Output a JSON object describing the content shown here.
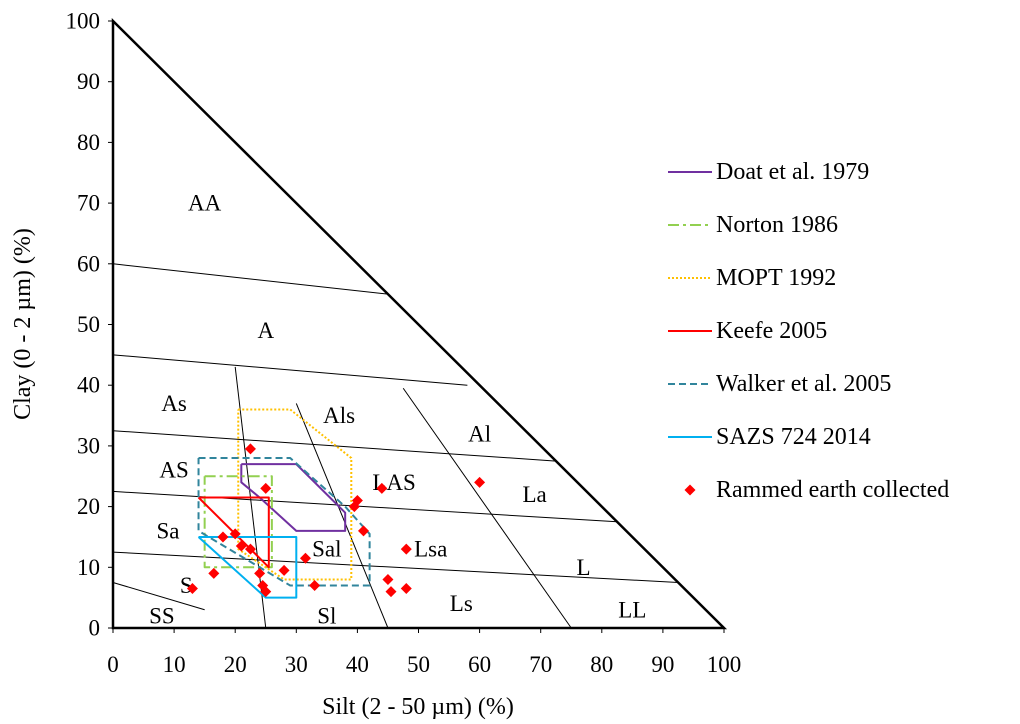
{
  "chart_data": {
    "type": "scatter",
    "xlabel": "Silt (2 - 50 µm) (%)",
    "ylabel": "Clay (0 - 2 µm) (%)",
    "xlim": [
      0,
      100
    ],
    "ylim": [
      0,
      100
    ],
    "x_ticks": [
      "0",
      "10",
      "20",
      "30",
      "40",
      "50",
      "60",
      "70",
      "80",
      "90",
      "100"
    ],
    "y_ticks": [
      "0",
      "10",
      "20",
      "30",
      "40",
      "50",
      "60",
      "70",
      "80",
      "90",
      "100"
    ],
    "legend_position": "right",
    "triangle": [
      [
        0,
        0
      ],
      [
        0,
        100
      ],
      [
        100,
        0
      ]
    ],
    "class_lines": [
      {
        "from": [
          0,
          60
        ],
        "to": [
          45,
          55
        ]
      },
      {
        "from": [
          0,
          45
        ],
        "to": [
          58,
          40
        ]
      },
      {
        "from": [
          0,
          32.5
        ],
        "to": [
          72.5,
          27.5
        ]
      },
      {
        "from": [
          0,
          22.5
        ],
        "to": [
          82.5,
          17.5
        ]
      },
      {
        "from": [
          0,
          12.5
        ],
        "to": [
          92.5,
          7.5
        ]
      },
      {
        "from": [
          0,
          7.5
        ],
        "to": [
          15,
          3
        ]
      },
      {
        "from": [
          25,
          0
        ],
        "to": [
          20,
          43
        ]
      },
      {
        "from": [
          45,
          0
        ],
        "to": [
          30,
          37
        ]
      },
      {
        "from": [
          75,
          0
        ],
        "to": [
          47.5,
          39.5
        ]
      }
    ],
    "class_labels": [
      {
        "text": "AA",
        "x": 15,
        "y": 70
      },
      {
        "text": "A",
        "x": 25,
        "y": 49
      },
      {
        "text": "As",
        "x": 10,
        "y": 37
      },
      {
        "text": "Als",
        "x": 37,
        "y": 35
      },
      {
        "text": "Al",
        "x": 60,
        "y": 32
      },
      {
        "text": "AS",
        "x": 10,
        "y": 26
      },
      {
        "text": "LAS",
        "x": 46,
        "y": 24
      },
      {
        "text": "La",
        "x": 69,
        "y": 22
      },
      {
        "text": "Sa",
        "x": 9,
        "y": 16
      },
      {
        "text": "Sal",
        "x": 35,
        "y": 13
      },
      {
        "text": "Lsa",
        "x": 52,
        "y": 13
      },
      {
        "text": "L",
        "x": 77,
        "y": 10
      },
      {
        "text": "S",
        "x": 12,
        "y": 7
      },
      {
        "text": "Ls",
        "x": 57,
        "y": 4
      },
      {
        "text": "Sl",
        "x": 35,
        "y": 2
      },
      {
        "text": "SS",
        "x": 8,
        "y": 2
      },
      {
        "text": "LL",
        "x": 85,
        "y": 3
      }
    ],
    "series": [
      {
        "name": "Doat et al. 1979",
        "kind": "line",
        "color": "#7030A0",
        "dash": "",
        "points": [
          [
            21,
            27
          ],
          [
            30,
            27
          ],
          [
            38,
            19
          ],
          [
            38,
            16
          ],
          [
            30,
            16
          ],
          [
            24,
            21.5
          ],
          [
            21,
            24
          ],
          [
            21,
            27
          ]
        ]
      },
      {
        "name": "Norton 1986",
        "kind": "line",
        "color": "#92D050",
        "dash": "11 4 3 4",
        "points": [
          [
            15,
            25
          ],
          [
            26,
            25
          ],
          [
            26,
            10
          ],
          [
            15,
            10
          ],
          [
            15,
            25
          ]
        ]
      },
      {
        "name": "MOPT 1992",
        "kind": "line",
        "color": "#FFC000",
        "dash": "2 2",
        "points": [
          [
            20.5,
            36
          ],
          [
            29,
            36
          ],
          [
            39,
            28
          ],
          [
            39,
            8
          ],
          [
            28,
            8
          ],
          [
            20.5,
            13
          ],
          [
            20.5,
            36
          ]
        ]
      },
      {
        "name": "Keefe 2005",
        "kind": "line",
        "color": "#FF0000",
        "dash": "",
        "points": [
          [
            14,
            21.5
          ],
          [
            25.5,
            21.5
          ],
          [
            25.5,
            10
          ],
          [
            14,
            21.5
          ]
        ]
      },
      {
        "name": "Walker et al. 2005",
        "kind": "line",
        "color": "#31859C",
        "dash": "7 4",
        "points": [
          [
            14,
            28
          ],
          [
            29,
            28
          ],
          [
            38,
            20
          ],
          [
            42,
            15.5
          ],
          [
            42,
            7
          ],
          [
            29,
            7
          ],
          [
            14,
            16
          ],
          [
            14,
            28
          ]
        ]
      },
      {
        "name": "SAZS 724 2014",
        "kind": "line",
        "color": "#00B0F0",
        "dash": "",
        "points": [
          [
            14,
            15
          ],
          [
            30,
            15
          ],
          [
            30,
            5
          ],
          [
            25,
            5
          ],
          [
            14,
            15
          ]
        ]
      },
      {
        "name": "Rammed earth collected",
        "kind": "scatter",
        "color": "#FF0000",
        "marker": "diamond",
        "points": [
          [
            22.5,
            29.5
          ],
          [
            20,
            15.5
          ],
          [
            18,
            15
          ],
          [
            25,
            23
          ],
          [
            21,
            13.5
          ],
          [
            22.5,
            13
          ],
          [
            24,
            9
          ],
          [
            24.5,
            7
          ],
          [
            25,
            6
          ],
          [
            28,
            9.5
          ],
          [
            31.5,
            11.5
          ],
          [
            33,
            7
          ],
          [
            16.5,
            9
          ],
          [
            13,
            6.5
          ],
          [
            44,
            23
          ],
          [
            40,
            21
          ],
          [
            39.5,
            20
          ],
          [
            41,
            16
          ],
          [
            48,
            13
          ],
          [
            45,
            8
          ],
          [
            45.5,
            6
          ],
          [
            48,
            6.5
          ],
          [
            60,
            24
          ]
        ]
      }
    ]
  }
}
